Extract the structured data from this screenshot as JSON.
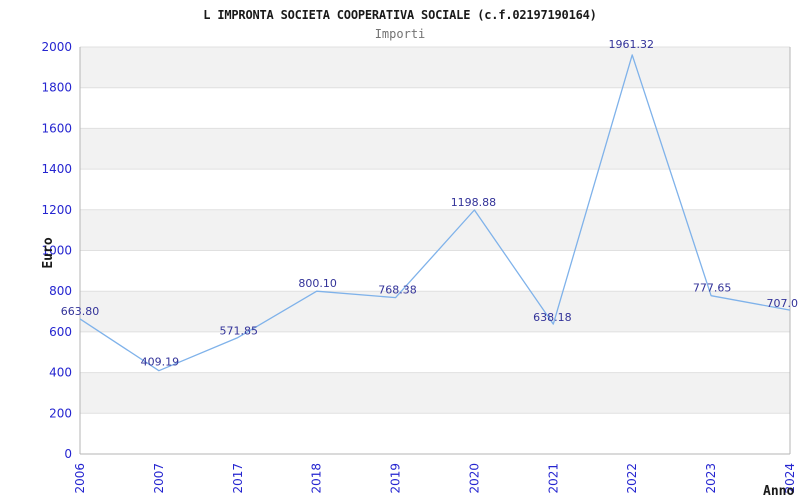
{
  "header": {
    "title": "L IMPRONTA SOCIETA COOPERATIVA SOCIALE (c.f.02197190164)",
    "subtitle": "Importi"
  },
  "chart_data": {
    "type": "line",
    "title": "L IMPRONTA SOCIETA COOPERATIVA SOCIALE (c.f.02197190164)",
    "subtitle": "Importi",
    "xlabel": "Anno",
    "ylabel": "Euro",
    "categories": [
      "2006",
      "2007",
      "2017",
      "2018",
      "2019",
      "2020",
      "2021",
      "2022",
      "2023",
      "2024"
    ],
    "values": [
      663.8,
      409.19,
      571.85,
      800.1,
      768.38,
      1198.88,
      638.18,
      1961.32,
      777.65,
      707.0
    ],
    "point_labels": [
      "663.80",
      "409.19",
      "571.85",
      "800.10",
      "768.38",
      "1198.88",
      "638.18",
      "1961.32",
      "777.65",
      "707.0"
    ],
    "ylim": [
      0,
      2000
    ],
    "ytick_step": 200,
    "grid": true,
    "legend": "none",
    "band_pattern": "alternating horizontal bands of 200, gray on 200-400, 600-800, 1000-1200, 1400-1600, 1800-2000",
    "colors": {
      "line": "#7fb2ea",
      "band_fill": "#f2f2f2",
      "gridline": "#e0e0e0",
      "axis_line": "#b5b5b5",
      "tick_label": "#2525d0",
      "point_label": "#333399",
      "title": "#1a1a1a",
      "subtitle": "#737373"
    }
  }
}
